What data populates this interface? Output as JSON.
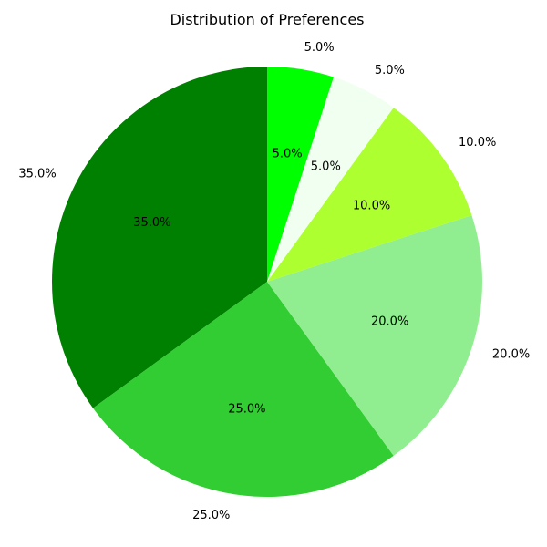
{
  "chart_data": {
    "type": "pie",
    "title": "Distribution of Preferences",
    "start_angle_deg": 90,
    "direction": "counterclockwise",
    "slices": [
      {
        "value": 35,
        "label": "35.0%",
        "pct_label": "35.0%",
        "color": "#008000"
      },
      {
        "value": 25,
        "label": "25.0%",
        "pct_label": "25.0%",
        "color": "#32CD32"
      },
      {
        "value": 20,
        "label": "20.0%",
        "pct_label": "20.0%",
        "color": "#90EE90"
      },
      {
        "value": 10,
        "label": "10.0%",
        "pct_label": "10.0%",
        "color": "#ADFF2F"
      },
      {
        "value": 5,
        "label": "5.0%",
        "pct_label": "5.0%",
        "color": "#F0FFF0"
      },
      {
        "value": 5,
        "label": "5.0%",
        "pct_label": "5.0%",
        "color": "#00FF00"
      }
    ]
  }
}
